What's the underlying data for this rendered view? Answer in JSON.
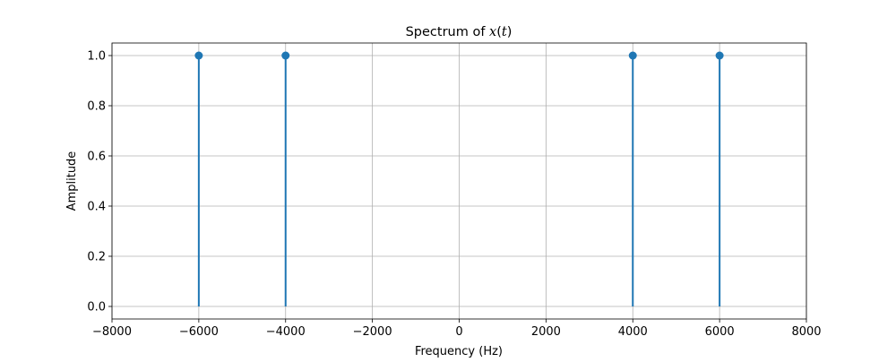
{
  "chart_data": {
    "type": "stem",
    "title_prefix": "Spectrum of ",
    "title_math_var": "x",
    "title_math_open": "(",
    "title_math_arg": "t",
    "title_math_close": ")",
    "xlabel": "Frequency (Hz)",
    "ylabel": "Amplitude",
    "xlim": [
      -8000,
      8000
    ],
    "ylim": [
      -0.05,
      1.05
    ],
    "xticks": [
      -8000,
      -6000,
      -4000,
      -2000,
      0,
      2000,
      4000,
      6000,
      8000
    ],
    "xtick_labels": [
      "−8000",
      "−6000",
      "−4000",
      "−2000",
      "0",
      "2000",
      "4000",
      "6000",
      "8000"
    ],
    "yticks": [
      0.0,
      0.2,
      0.4,
      0.6,
      0.8,
      1.0
    ],
    "ytick_labels": [
      "0.0",
      "0.2",
      "0.4",
      "0.6",
      "0.8",
      "1.0"
    ],
    "grid": true,
    "series": [
      {
        "x": [
          -6000,
          -4000,
          4000,
          6000
        ],
        "y": [
          1.0,
          1.0,
          1.0,
          1.0
        ],
        "color": "#1f77b4"
      }
    ]
  }
}
